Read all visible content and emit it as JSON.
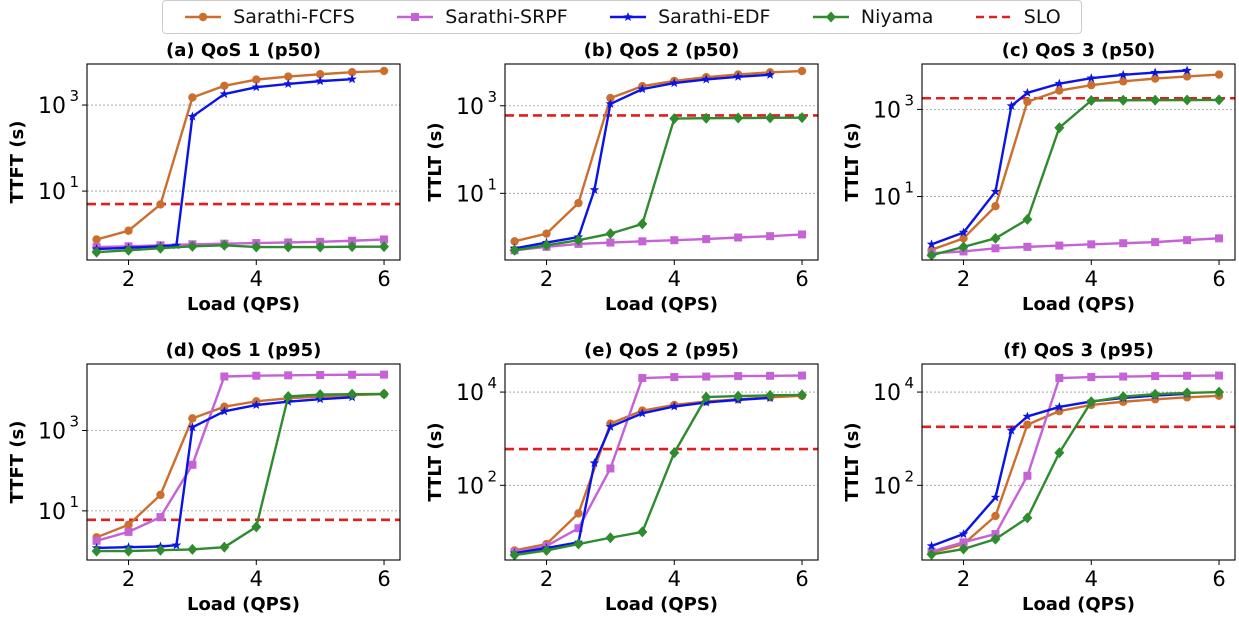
{
  "legend": [
    {
      "name": "Sarathi-FCFS",
      "color": "#CC6F2E",
      "marker": "circle",
      "dash": false
    },
    {
      "name": "Sarathi-SRPF",
      "color": "#C462D6",
      "marker": "square",
      "dash": false
    },
    {
      "name": "Sarathi-EDF",
      "color": "#0A14E6",
      "marker": "star",
      "dash": false
    },
    {
      "name": "Niyama",
      "color": "#2E8B2E",
      "marker": "diamond",
      "dash": false
    },
    {
      "name": "SLO",
      "color": "#E01F1F",
      "marker": "none",
      "dash": true
    }
  ],
  "chart_data": [
    {
      "type": "line",
      "title": "(a) QoS 1 (p50)",
      "xlabel": "Load (QPS)",
      "ylabel": "TTFT (s)",
      "yscale": "log",
      "ylim": [
        0.25,
        9000
      ],
      "xlim": [
        1.35,
        6.25
      ],
      "xticks": [
        2,
        4,
        6
      ],
      "yticks": [
        {
          "v": 10,
          "label": "10",
          "exp": "1"
        },
        {
          "v": 1000,
          "label": "10",
          "exp": "3"
        }
      ],
      "slo": 5,
      "series": [
        {
          "name": "Sarathi-FCFS",
          "x": [
            1.5,
            2,
            2.5,
            3,
            3.5,
            4,
            4.5,
            5,
            5.5,
            6
          ],
          "y": [
            0.75,
            1.2,
            4.9,
            1500,
            2800,
            3900,
            4600,
            5200,
            5800,
            6200
          ]
        },
        {
          "name": "Sarathi-SRPF",
          "x": [
            1.5,
            2,
            2.5,
            3,
            3.5,
            4,
            4.5,
            5,
            5.5,
            6
          ],
          "y": [
            0.5,
            0.52,
            0.55,
            0.58,
            0.6,
            0.62,
            0.64,
            0.66,
            0.7,
            0.75
          ]
        },
        {
          "name": "Sarathi-EDF",
          "x": [
            1.5,
            2,
            2.5,
            2.75,
            3,
            3.5,
            4,
            4.5,
            5,
            5.5
          ],
          "y": [
            0.45,
            0.48,
            0.52,
            0.55,
            540,
            1800,
            2600,
            3100,
            3600,
            4000
          ]
        },
        {
          "name": "Niyama",
          "x": [
            1.5,
            2,
            2.5,
            3,
            3.5,
            4,
            4.5,
            5,
            5.5,
            6
          ],
          "y": [
            0.38,
            0.42,
            0.47,
            0.52,
            0.55,
            0.5,
            0.5,
            0.5,
            0.51,
            0.51
          ]
        }
      ]
    },
    {
      "type": "line",
      "title": "(b) QoS 2 (p50)",
      "xlabel": "Load (QPS)",
      "ylabel": "TTLT (s)",
      "yscale": "log",
      "ylim": [
        0.3,
        9000
      ],
      "xlim": [
        1.35,
        6.25
      ],
      "xticks": [
        2,
        4,
        6
      ],
      "yticks": [
        {
          "v": 10,
          "label": "10",
          "exp": "1"
        },
        {
          "v": 1000,
          "label": "10",
          "exp": "3"
        }
      ],
      "slo": 600,
      "series": [
        {
          "name": "Sarathi-FCFS",
          "x": [
            1.5,
            2,
            2.5,
            3,
            3.5,
            4,
            4.5,
            5,
            5.5,
            6
          ],
          "y": [
            0.8,
            1.2,
            6,
            1500,
            2800,
            3700,
            4500,
            5200,
            5800,
            6200
          ]
        },
        {
          "name": "Sarathi-SRPF",
          "x": [
            1.5,
            2,
            2.5,
            3,
            3.5,
            4,
            4.5,
            5,
            5.5,
            6
          ],
          "y": [
            0.5,
            0.6,
            0.7,
            0.75,
            0.8,
            0.85,
            0.9,
            0.98,
            1.05,
            1.15
          ]
        },
        {
          "name": "Sarathi-EDF",
          "x": [
            1.5,
            2,
            2.5,
            2.75,
            3,
            3.5,
            4,
            4.5,
            5,
            5.5
          ],
          "y": [
            0.55,
            0.75,
            1.0,
            12,
            1100,
            2400,
            3300,
            4000,
            4600,
            5100
          ]
        },
        {
          "name": "Niyama",
          "x": [
            1.5,
            2,
            2.5,
            3,
            3.5,
            4,
            4.5,
            5,
            5.5,
            6
          ],
          "y": [
            0.5,
            0.65,
            0.85,
            1.2,
            2,
            510,
            520,
            525,
            530,
            535
          ]
        }
      ]
    },
    {
      "type": "line",
      "title": "(c) QoS 3 (p50)",
      "xlabel": "Load (QPS)",
      "ylabel": "TTLT (s)",
      "yscale": "log",
      "ylim": [
        0.35,
        11000
      ],
      "xlim": [
        1.35,
        6.25
      ],
      "xticks": [
        2,
        4,
        6
      ],
      "yticks": [
        {
          "v": 10,
          "label": "10",
          "exp": "1"
        },
        {
          "v": 1000,
          "label": "10",
          "exp": "3"
        }
      ],
      "slo": 1800,
      "series": [
        {
          "name": "Sarathi-FCFS",
          "x": [
            1.5,
            2,
            2.5,
            3,
            3.5,
            4,
            4.5,
            5,
            5.5,
            6
          ],
          "y": [
            0.6,
            1.1,
            6,
            1500,
            2700,
            3600,
            4400,
            5100,
            5700,
            6300
          ]
        },
        {
          "name": "Sarathi-SRPF",
          "x": [
            1.5,
            2,
            2.5,
            3,
            3.5,
            4,
            4.5,
            5,
            5.5,
            6
          ],
          "y": [
            0.5,
            0.55,
            0.65,
            0.7,
            0.75,
            0.8,
            0.85,
            0.9,
            1.0,
            1.1
          ]
        },
        {
          "name": "Sarathi-EDF",
          "x": [
            1.5,
            2,
            2.5,
            2.75,
            3,
            3.5,
            4,
            4.5,
            5,
            5.5
          ],
          "y": [
            0.8,
            1.5,
            13,
            1200,
            2400,
            3900,
            5200,
            6200,
            7000,
            7800
          ]
        },
        {
          "name": "Niyama",
          "x": [
            1.5,
            2,
            2.5,
            3,
            3.5,
            4,
            4.5,
            5,
            5.5,
            6
          ],
          "y": [
            0.45,
            0.7,
            1.1,
            3,
            380,
            1600,
            1620,
            1630,
            1640,
            1650
          ]
        }
      ]
    },
    {
      "type": "line",
      "title": "(d) QoS 1 (p95)",
      "xlabel": "Load (QPS)",
      "ylabel": "TTFT (s)",
      "yscale": "log",
      "ylim": [
        0.6,
        45000
      ],
      "xlim": [
        1.35,
        6.25
      ],
      "xticks": [
        2,
        4,
        6
      ],
      "yticks": [
        {
          "v": 10,
          "label": "10",
          "exp": "1"
        },
        {
          "v": 1000,
          "label": "10",
          "exp": "3"
        }
      ],
      "slo": 6,
      "series": [
        {
          "name": "Sarathi-FCFS",
          "x": [
            1.5,
            2,
            2.5,
            3,
            3.5,
            4,
            4.5,
            5,
            5.5,
            6
          ],
          "y": [
            2.2,
            4.5,
            25,
            2000,
            3900,
            5300,
            6300,
            7000,
            7600,
            8000
          ]
        },
        {
          "name": "Sarathi-SRPF",
          "x": [
            1.5,
            2,
            2.5,
            3,
            3.5,
            4,
            4.5,
            5,
            5.5,
            6
          ],
          "y": [
            1.8,
            3,
            7,
            140,
            22000,
            23000,
            23500,
            24000,
            24300,
            24500
          ]
        },
        {
          "name": "Sarathi-EDF",
          "x": [
            1.5,
            2,
            2.5,
            2.75,
            3,
            3.5,
            4,
            4.5,
            5,
            5.5
          ],
          "y": [
            1.2,
            1.25,
            1.3,
            1.4,
            1200,
            3000,
            4300,
            5200,
            6000,
            6700
          ]
        },
        {
          "name": "Niyama",
          "x": [
            1.5,
            2,
            2.5,
            3,
            3.5,
            4,
            4.5,
            5,
            5.5,
            6
          ],
          "y": [
            1,
            1,
            1.05,
            1.1,
            1.25,
            4,
            7000,
            7800,
            8000,
            8100
          ]
        }
      ]
    },
    {
      "type": "line",
      "title": "(e) QoS 2 (p95)",
      "xlabel": "Load (QPS)",
      "ylabel": "TTLT (s)",
      "yscale": "log",
      "ylim": [
        2.5,
        40000
      ],
      "xlim": [
        1.35,
        6.25
      ],
      "xticks": [
        2,
        4,
        6
      ],
      "yticks": [
        {
          "v": 100,
          "label": "10",
          "exp": "2"
        },
        {
          "v": 10000,
          "label": "10",
          "exp": "4"
        }
      ],
      "slo": 600,
      "series": [
        {
          "name": "Sarathi-FCFS",
          "x": [
            1.5,
            2,
            2.5,
            3,
            3.5,
            4,
            4.5,
            5,
            5.5,
            6
          ],
          "y": [
            4,
            5.5,
            25,
            2100,
            4000,
            5300,
            6300,
            7000,
            7700,
            8300
          ]
        },
        {
          "name": "Sarathi-SRPF",
          "x": [
            1.5,
            2,
            2.5,
            3,
            3.5,
            4,
            4.5,
            5,
            5.5,
            6
          ],
          "y": [
            3.7,
            5,
            12,
            230,
            20000,
            21000,
            21500,
            22000,
            22300,
            22600
          ]
        },
        {
          "name": "Sarathi-EDF",
          "x": [
            1.5,
            2,
            2.5,
            2.75,
            3,
            3.5,
            4,
            4.5,
            5,
            5.5
          ],
          "y": [
            3.5,
            4.5,
            6,
            300,
            1800,
            3500,
            4900,
            6000,
            6800,
            7500
          ]
        },
        {
          "name": "Niyama",
          "x": [
            1.5,
            2,
            2.5,
            3,
            3.5,
            4,
            4.5,
            5,
            5.5,
            6
          ],
          "y": [
            3.2,
            4,
            5.5,
            7.5,
            10,
            500,
            7800,
            8200,
            8500,
            8700
          ]
        }
      ]
    },
    {
      "type": "line",
      "title": "(f) QoS 3 (p95)",
      "xlabel": "Load (QPS)",
      "ylabel": "TTLT (s)",
      "yscale": "log",
      "ylim": [
        2.5,
        40000
      ],
      "xlim": [
        1.35,
        6.25
      ],
      "xticks": [
        2,
        4,
        6
      ],
      "yticks": [
        {
          "v": 100,
          "label": "10",
          "exp": "2"
        },
        {
          "v": 10000,
          "label": "10",
          "exp": "4"
        }
      ],
      "slo": 1800,
      "series": [
        {
          "name": "Sarathi-FCFS",
          "x": [
            1.5,
            2,
            2.5,
            3,
            3.5,
            4,
            4.5,
            5,
            5.5,
            6
          ],
          "y": [
            3.6,
            5.5,
            22,
            2000,
            3900,
            5300,
            6200,
            7000,
            7700,
            8300
          ]
        },
        {
          "name": "Sarathi-SRPF",
          "x": [
            1.5,
            2,
            2.5,
            3,
            3.5,
            4,
            4.5,
            5,
            5.5,
            6
          ],
          "y": [
            3.8,
            6,
            9,
            160,
            20000,
            21000,
            21500,
            22000,
            22300,
            22600
          ]
        },
        {
          "name": "Sarathi-EDF",
          "x": [
            1.5,
            2,
            2.5,
            2.75,
            3,
            3.5,
            4,
            4.5,
            5,
            5.5
          ],
          "y": [
            5,
            9,
            55,
            1500,
            3000,
            4800,
            6300,
            7500,
            8400,
            9200
          ]
        },
        {
          "name": "Niyama",
          "x": [
            1.5,
            2,
            2.5,
            3,
            3.5,
            4,
            4.5,
            5,
            5.5,
            6
          ],
          "y": [
            3.3,
            4.3,
            7,
            20,
            500,
            6200,
            8000,
            9000,
            9600,
            10000
          ]
        }
      ]
    }
  ]
}
